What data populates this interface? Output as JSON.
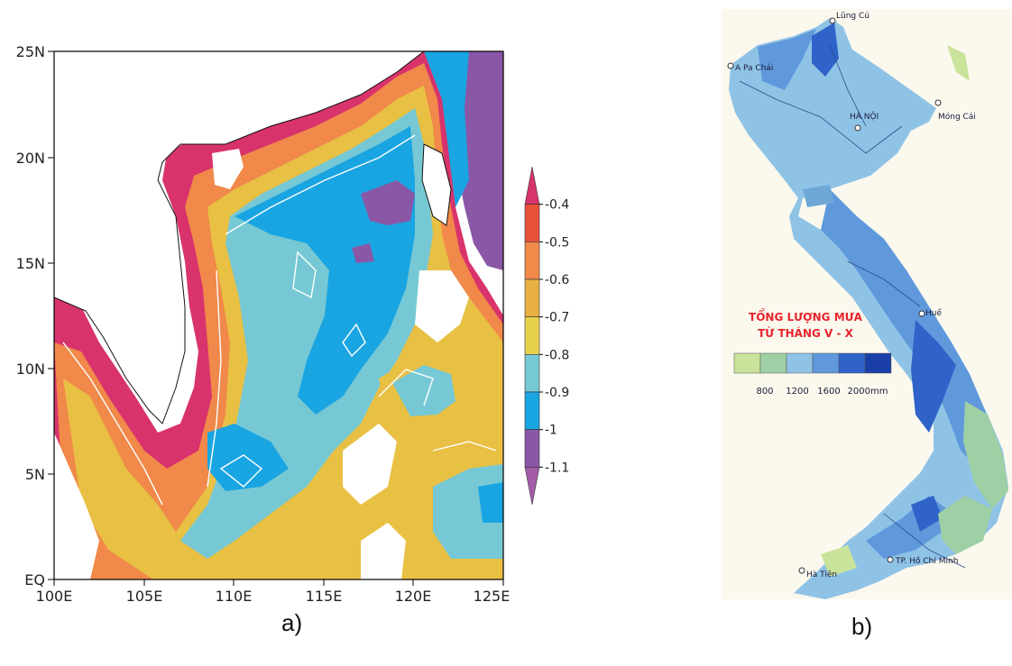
{
  "panel_a": {
    "label": "a)",
    "lat_ticks": [
      "25N",
      "20N",
      "15N",
      "10N",
      "5N",
      "EQ"
    ],
    "lon_ticks": [
      "100E",
      "105E",
      "110E",
      "115E",
      "120E",
      "125E"
    ],
    "colorbar": {
      "ticks": [
        "-0.4",
        "-0.5",
        "-0.6",
        "-0.7",
        "-0.8",
        "-0.9",
        "-1",
        "-1.1"
      ],
      "colors": [
        "#d8336c",
        "#e9503a",
        "#f0894a",
        "#e8b043",
        "#e7d04c",
        "#76c8d4",
        "#19a5e2",
        "#8a57a6",
        "#a45ca8"
      ]
    }
  },
  "panel_b": {
    "label": "b)",
    "places": [
      "Lũng Cú",
      "A Pa Chải",
      "HÀ NỘI",
      "Móng Cái",
      "Huế",
      "TP. Hồ Chí Minh",
      "Hà Tiên"
    ],
    "legend_title_1": "TỔNG LƯỢNG MƯA",
    "legend_title_2": "TỪ THÁNG V - X",
    "legend_labels": [
      "800",
      "1200",
      "1600",
      "2000mm"
    ],
    "legend_colors": [
      "#c9e39a",
      "#9fcfa4",
      "#8fc3e6",
      "#5f99dc",
      "#2f63c9",
      "#1a3fa8"
    ]
  }
}
